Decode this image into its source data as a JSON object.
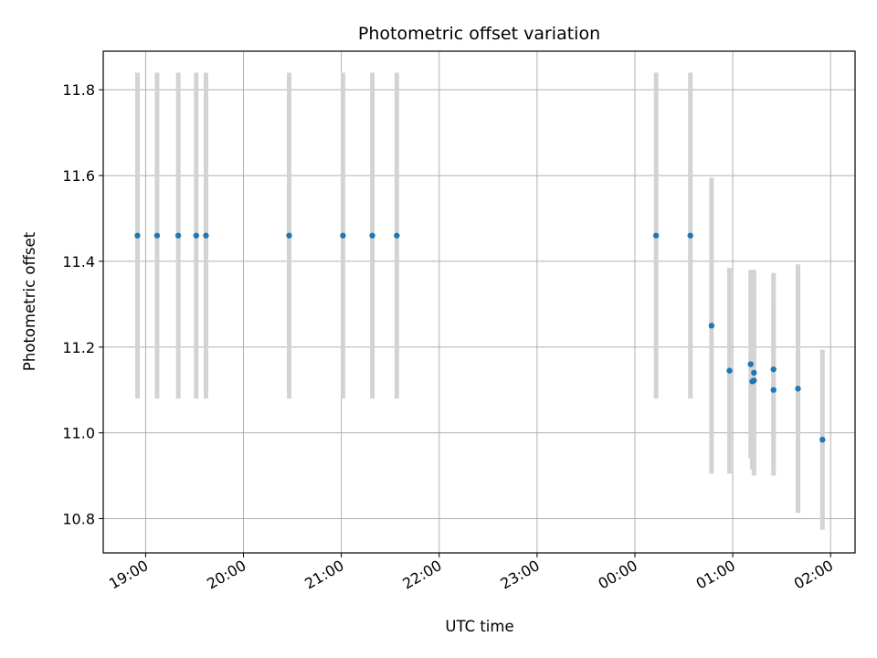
{
  "chart_data": {
    "type": "scatter",
    "title": "Photometric offset variation",
    "xlabel": "UTC time",
    "ylabel": "Photometric offset",
    "x_tick_labels": [
      "19:00",
      "20:00",
      "21:00",
      "22:00",
      "23:00",
      "00:00",
      "01:00",
      "02:00"
    ],
    "y_ticks": [
      10.8,
      11.0,
      11.2,
      11.4,
      11.6,
      11.8
    ],
    "y_tick_labels": [
      "10.8",
      "11.0",
      "11.2",
      "11.4",
      "11.6",
      "11.8"
    ],
    "xlim": [
      "18:34",
      "02:15"
    ],
    "ylim": [
      10.72,
      11.89
    ],
    "grid": true,
    "point_color": "#1f77b4",
    "errorbar_color": "#d3d3d3",
    "points": [
      {
        "x": "18:55",
        "y": 11.46,
        "err": 0.38
      },
      {
        "x": "19:07",
        "y": 11.46,
        "err": 0.38
      },
      {
        "x": "19:20",
        "y": 11.46,
        "err": 0.38
      },
      {
        "x": "19:31",
        "y": 11.46,
        "err": 0.38
      },
      {
        "x": "19:37",
        "y": 11.46,
        "err": 0.38
      },
      {
        "x": "20:28",
        "y": 11.46,
        "err": 0.38
      },
      {
        "x": "21:01",
        "y": 11.46,
        "err": 0.38
      },
      {
        "x": "21:19",
        "y": 11.46,
        "err": 0.38
      },
      {
        "x": "21:34",
        "y": 11.46,
        "err": 0.38
      },
      {
        "x": "00:13",
        "y": 11.46,
        "err": 0.38
      },
      {
        "x": "00:34",
        "y": 11.46,
        "err": 0.38
      },
      {
        "x": "00:47",
        "y": 11.25,
        "err": 0.345
      },
      {
        "x": "00:58",
        "y": 11.145,
        "err": 0.24
      },
      {
        "x": "01:11",
        "y": 11.16,
        "err": 0.22
      },
      {
        "x": "01:12",
        "y": 11.12,
        "err": 0.205
      },
      {
        "x": "01:13",
        "y": 11.14,
        "err": 0.24
      },
      {
        "x": "01:13",
        "y": 11.122,
        "err": 0.2
      },
      {
        "x": "01:25",
        "y": 11.1,
        "err": 0.2
      },
      {
        "x": "01:25",
        "y": 11.148,
        "err": 0.225
      },
      {
        "x": "01:40",
        "y": 11.103,
        "err": 0.29
      },
      {
        "x": "01:55",
        "y": 10.984,
        "err": 0.21
      }
    ]
  }
}
